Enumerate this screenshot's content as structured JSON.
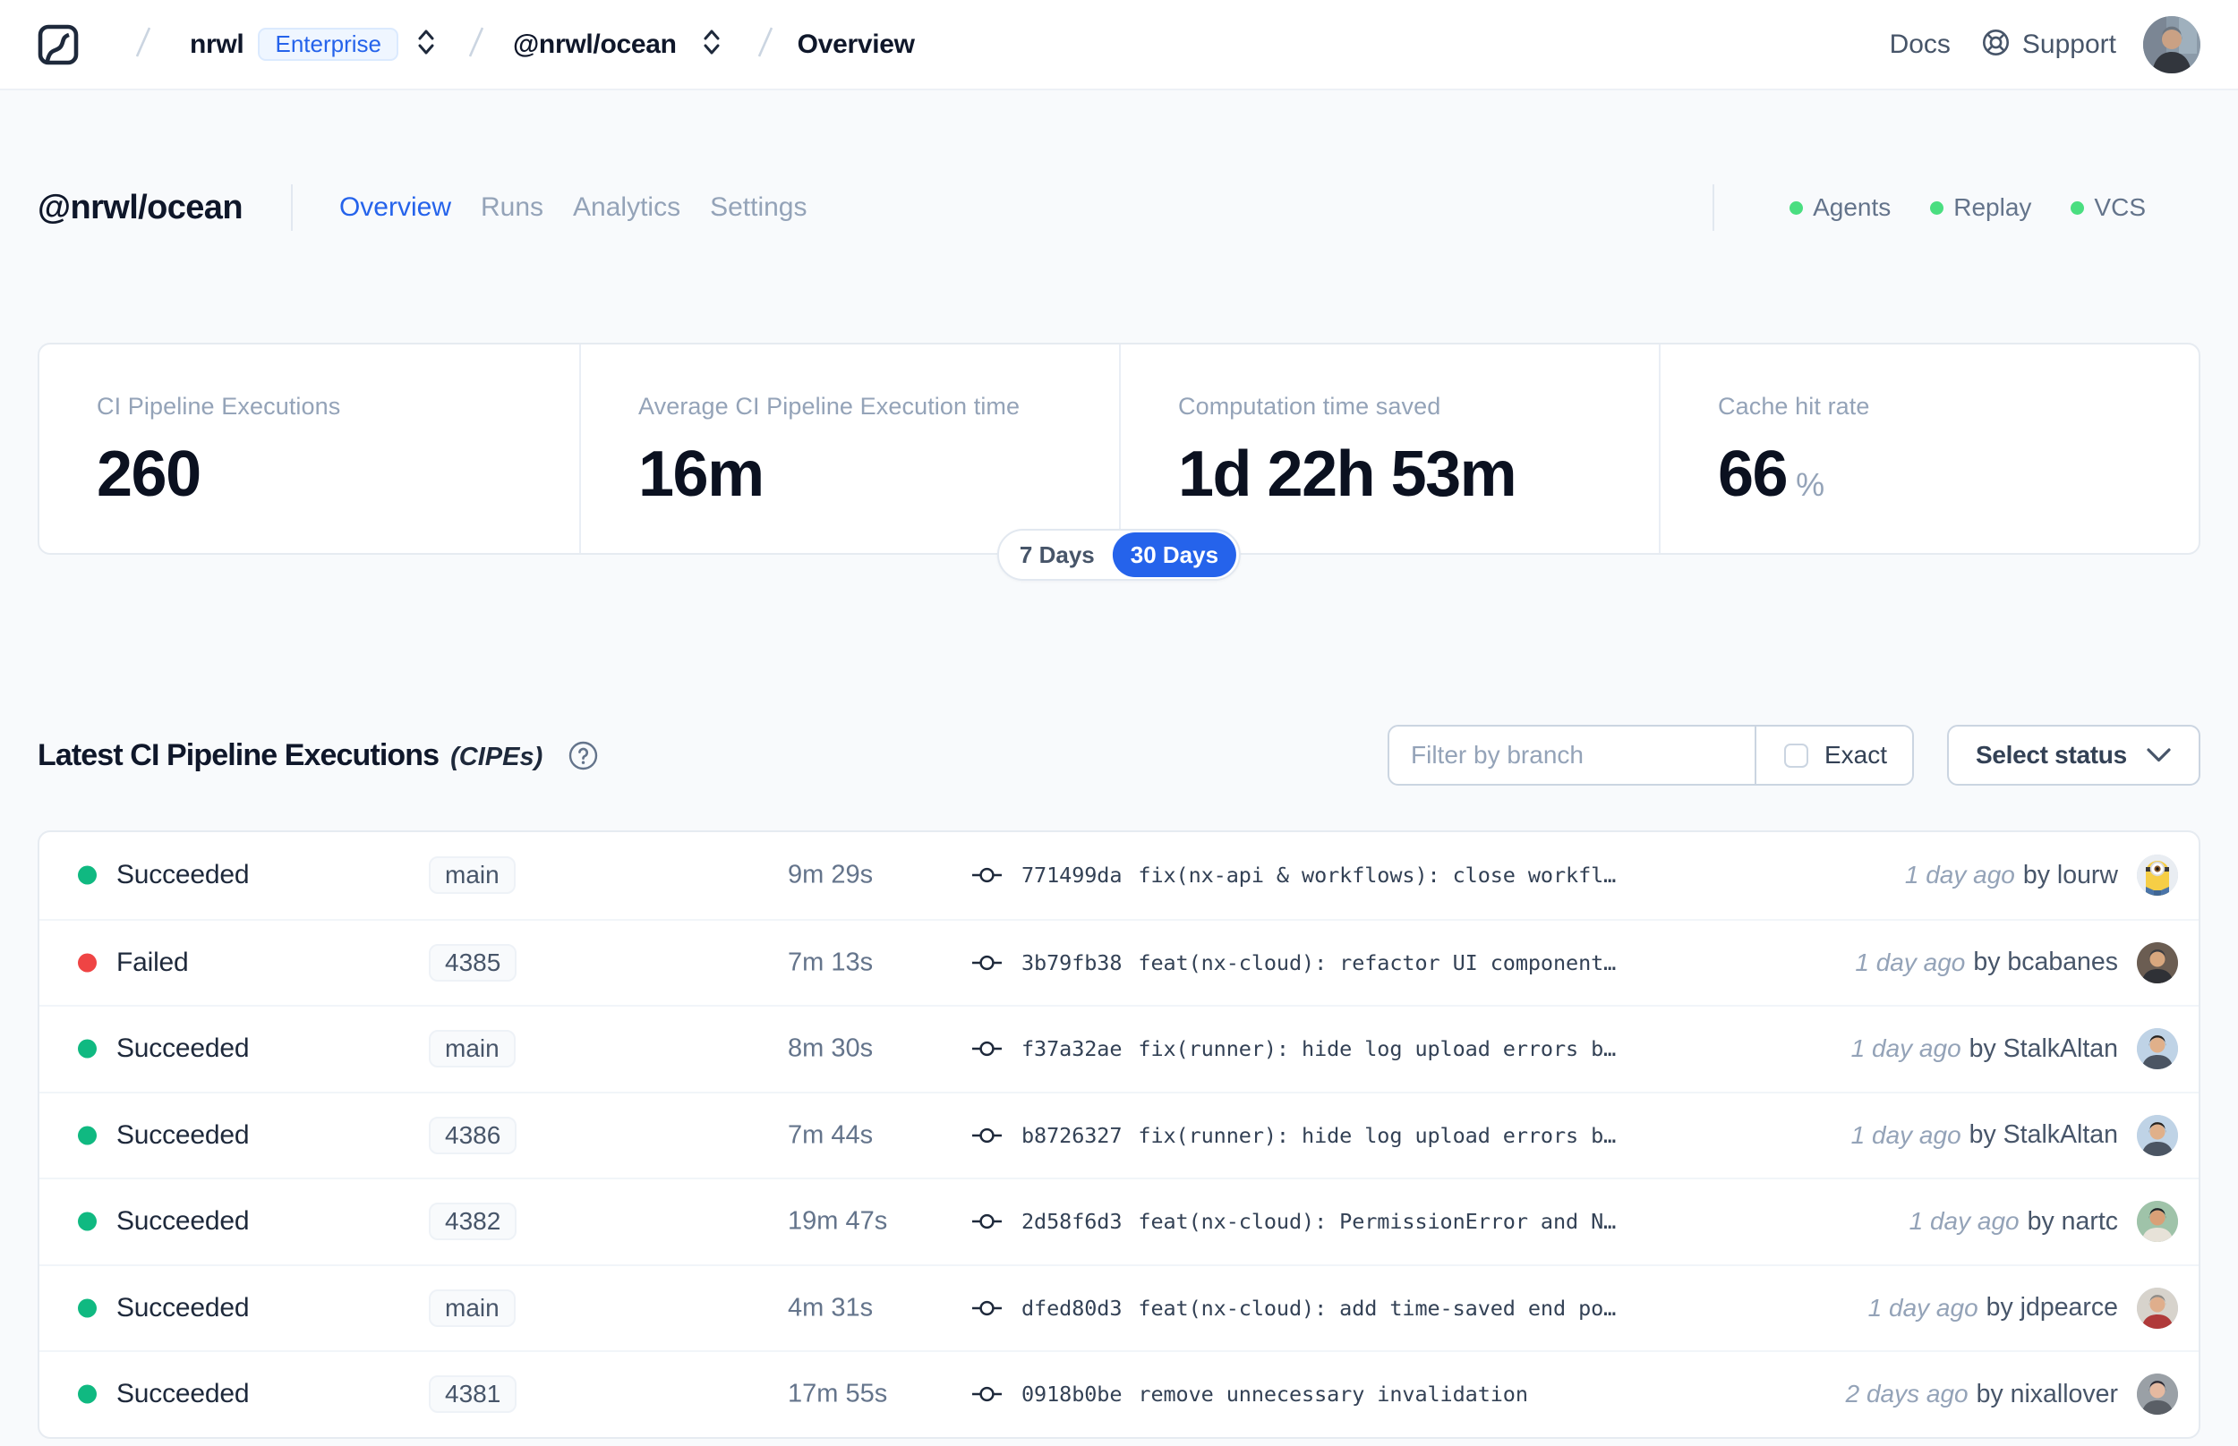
{
  "colors": {
    "accent": "#2563eb",
    "succeeded": "#10b981",
    "failed": "#ef4444",
    "status_dot": "#4ade80"
  },
  "topbar": {
    "org": "nrwl",
    "org_badge": "Enterprise",
    "workspace": "@nrwl/ocean",
    "page": "Overview",
    "docs_label": "Docs",
    "support_label": "Support"
  },
  "workspace": {
    "title": "@nrwl/ocean",
    "nav": [
      {
        "label": "Overview",
        "active": true
      },
      {
        "label": "Runs",
        "active": false
      },
      {
        "label": "Analytics",
        "active": false
      },
      {
        "label": "Settings",
        "active": false
      }
    ],
    "status_indicators": [
      {
        "label": "Agents"
      },
      {
        "label": "Replay"
      },
      {
        "label": "VCS"
      }
    ]
  },
  "stats": {
    "items": [
      {
        "label": "CI Pipeline Executions",
        "value": "260",
        "unit": ""
      },
      {
        "label": "Average CI Pipeline Execution time",
        "value": "16m",
        "unit": ""
      },
      {
        "label": "Computation time saved",
        "value": "1d 22h 53m",
        "unit": ""
      },
      {
        "label": "Cache hit rate",
        "value": "66",
        "unit": "%"
      }
    ],
    "range": {
      "options": [
        "7 Days",
        "30 Days"
      ],
      "selected": "30 Days"
    }
  },
  "section": {
    "title": "Latest CI Pipeline Executions",
    "subtitle": "(CIPEs)",
    "filter_placeholder": "Filter by branch",
    "exact_label": "Exact",
    "exact_checked": false,
    "status_select_label": "Select status"
  },
  "table": {
    "rows": [
      {
        "status": "Succeeded",
        "branch": "main",
        "duration": "9m 29s",
        "commit_hash": "771499da",
        "commit_message": "fix(nx-api & workflows): close workfl…",
        "time_ago": "1 day ago",
        "author": "by lourw",
        "avatar_kind": "minion",
        "avatar_css": "--bg:#fef9c3;--skin:#facc15;--top:#3b82c4;--hair:#7a5c10"
      },
      {
        "status": "Failed",
        "branch": "4385",
        "duration": "7m 13s",
        "commit_hash": "3b79fb38",
        "commit_message": "feat(nx-cloud): refactor UI component…",
        "time_ago": "1 day ago",
        "author": "by bcabanes",
        "avatar_kind": "person",
        "avatar_css": "--bg:#6b5d52;--skin:#d8a77e;--top:#2f3136;--hair:#3c3c40"
      },
      {
        "status": "Succeeded",
        "branch": "main",
        "duration": "8m 30s",
        "commit_hash": "f37a32ae",
        "commit_message": "fix(runner): hide log upload errors b…",
        "time_ago": "1 day ago",
        "author": "by StalkAltan",
        "avatar_kind": "person",
        "avatar_css": "--bg:#bfd3e6;--skin:#e0b08a;--top:#4b5563;--hair:#26221f"
      },
      {
        "status": "Succeeded",
        "branch": "4386",
        "duration": "7m 44s",
        "commit_hash": "b8726327",
        "commit_message": "fix(runner): hide log upload errors b…",
        "time_ago": "1 day ago",
        "author": "by StalkAltan",
        "avatar_kind": "person",
        "avatar_css": "--bg:#bfd3e6;--skin:#e0b08a;--top:#4b5563;--hair:#26221f"
      },
      {
        "status": "Succeeded",
        "branch": "4382",
        "duration": "19m 47s",
        "commit_hash": "2d58f6d3",
        "commit_message": "feat(nx-cloud): PermissionError and N…",
        "time_ago": "1 day ago",
        "author": "by nartc",
        "avatar_kind": "person",
        "avatar_css": "--bg:#9fc3a9;--skin:#d9a077;--top:#e7e2d8;--hair:#1f2428"
      },
      {
        "status": "Succeeded",
        "branch": "main",
        "duration": "4m 31s",
        "commit_hash": "dfed80d3",
        "commit_message": "feat(nx-cloud): add time-saved end po…",
        "time_ago": "1 day ago",
        "author": "by jdpearce",
        "avatar_kind": "person",
        "avatar_css": "--bg:#d7d3cc;--skin:#dfae8c;--top:#b03a3a;--hair:#8e8a85"
      },
      {
        "status": "Succeeded",
        "branch": "4381",
        "duration": "17m 55s",
        "commit_hash": "0918b0be",
        "commit_message": "remove unnecessary invalidation",
        "time_ago": "2 days ago",
        "author": "by nixallover",
        "avatar_kind": "person",
        "avatar_css": "--bg:#9aa0a6;--skin:#e5b9a0;--top:#5a5f66;--hair:#2d2a33"
      }
    ]
  }
}
